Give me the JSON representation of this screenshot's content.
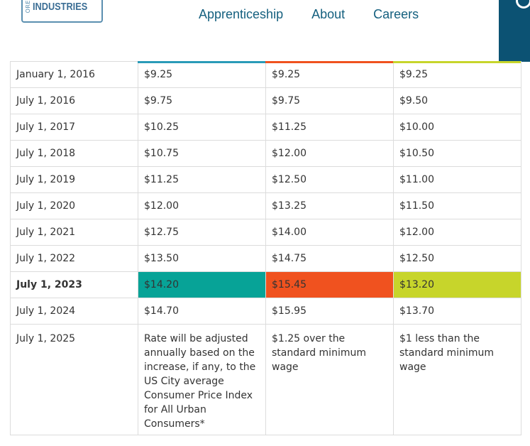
{
  "header": {
    "logo": {
      "small_text": "ORE",
      "text": "INDUSTRIES"
    },
    "nav": [
      "Apprenticeship",
      "About",
      "Careers"
    ],
    "accent_colors": [
      "#2a9bb8",
      "#f0521f",
      "#c7d52b"
    ]
  },
  "table": {
    "rows": [
      {
        "date": "January 1, 2016",
        "standard": "$9.25",
        "portland": "$9.25",
        "nonurban": "$9.25"
      },
      {
        "date": "July 1, 2016",
        "standard": "$9.75",
        "portland": "$9.75",
        "nonurban": "$9.50"
      },
      {
        "date": "July 1, 2017",
        "standard": "$10.25",
        "portland": "$11.25",
        "nonurban": "$10.00"
      },
      {
        "date": "July 1, 2018",
        "standard": "$10.75",
        "portland": "$12.00",
        "nonurban": "$10.50"
      },
      {
        "date": "July 1, 2019",
        "standard": "$11.25",
        "portland": "$12.50",
        "nonurban": "$11.00"
      },
      {
        "date": "July 1, 2020",
        "standard": "$12.00",
        "portland": "$13.25",
        "nonurban": "$11.50"
      },
      {
        "date": "July 1, 2021",
        "standard": "$12.75",
        "portland": "$14.00",
        "nonurban": "$12.00"
      },
      {
        "date": "July 1, 2022",
        "standard": "$13.50",
        "portland": "$14.75",
        "nonurban": "$12.50"
      },
      {
        "date": "July 1, 2023",
        "standard": "$14.20",
        "portland": "$15.45",
        "nonurban": "$13.20"
      },
      {
        "date": "July 1, 2024",
        "standard": "$14.70",
        "portland": "$15.95",
        "nonurban": "$13.70"
      },
      {
        "date": "July 1, 2025",
        "standard": "Rate will be adjusted annually based on the increase, if any, to the US City average Consumer Price Index for All Urban Consumers*",
        "portland": "$1.25 over the standard minimum wage",
        "nonurban": "$1 less than the standard minimum wage"
      }
    ],
    "highlight_colors": {
      "standard": "#07a397",
      "portland": "#f0521f",
      "nonurban": "#c7d52b"
    }
  }
}
